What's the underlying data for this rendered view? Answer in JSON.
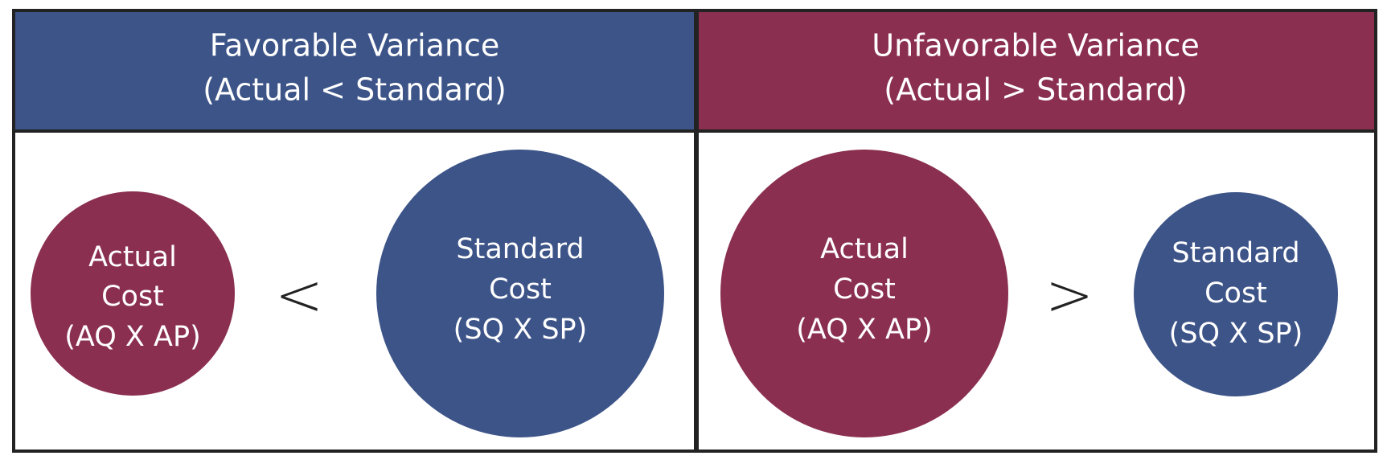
{
  "panels": [
    {
      "title": [
        "Favorable Variance",
        "(Actual < Standard)"
      ],
      "operator": "<",
      "circles": [
        {
          "label": [
            "Actual",
            "Cost",
            "(AQ X AP)"
          ]
        },
        {
          "label": [
            "Standard",
            "Cost",
            "(SQ X SP)"
          ]
        }
      ]
    },
    {
      "title": [
        "Unfavorable Variance",
        "(Actual > Standard)"
      ],
      "operator": ">",
      "circles": [
        {
          "label": [
            "Actual",
            "Cost",
            "(AQ X AP)"
          ]
        },
        {
          "label": [
            "Standard",
            "Cost",
            "(SQ X SP)"
          ]
        }
      ]
    }
  ]
}
